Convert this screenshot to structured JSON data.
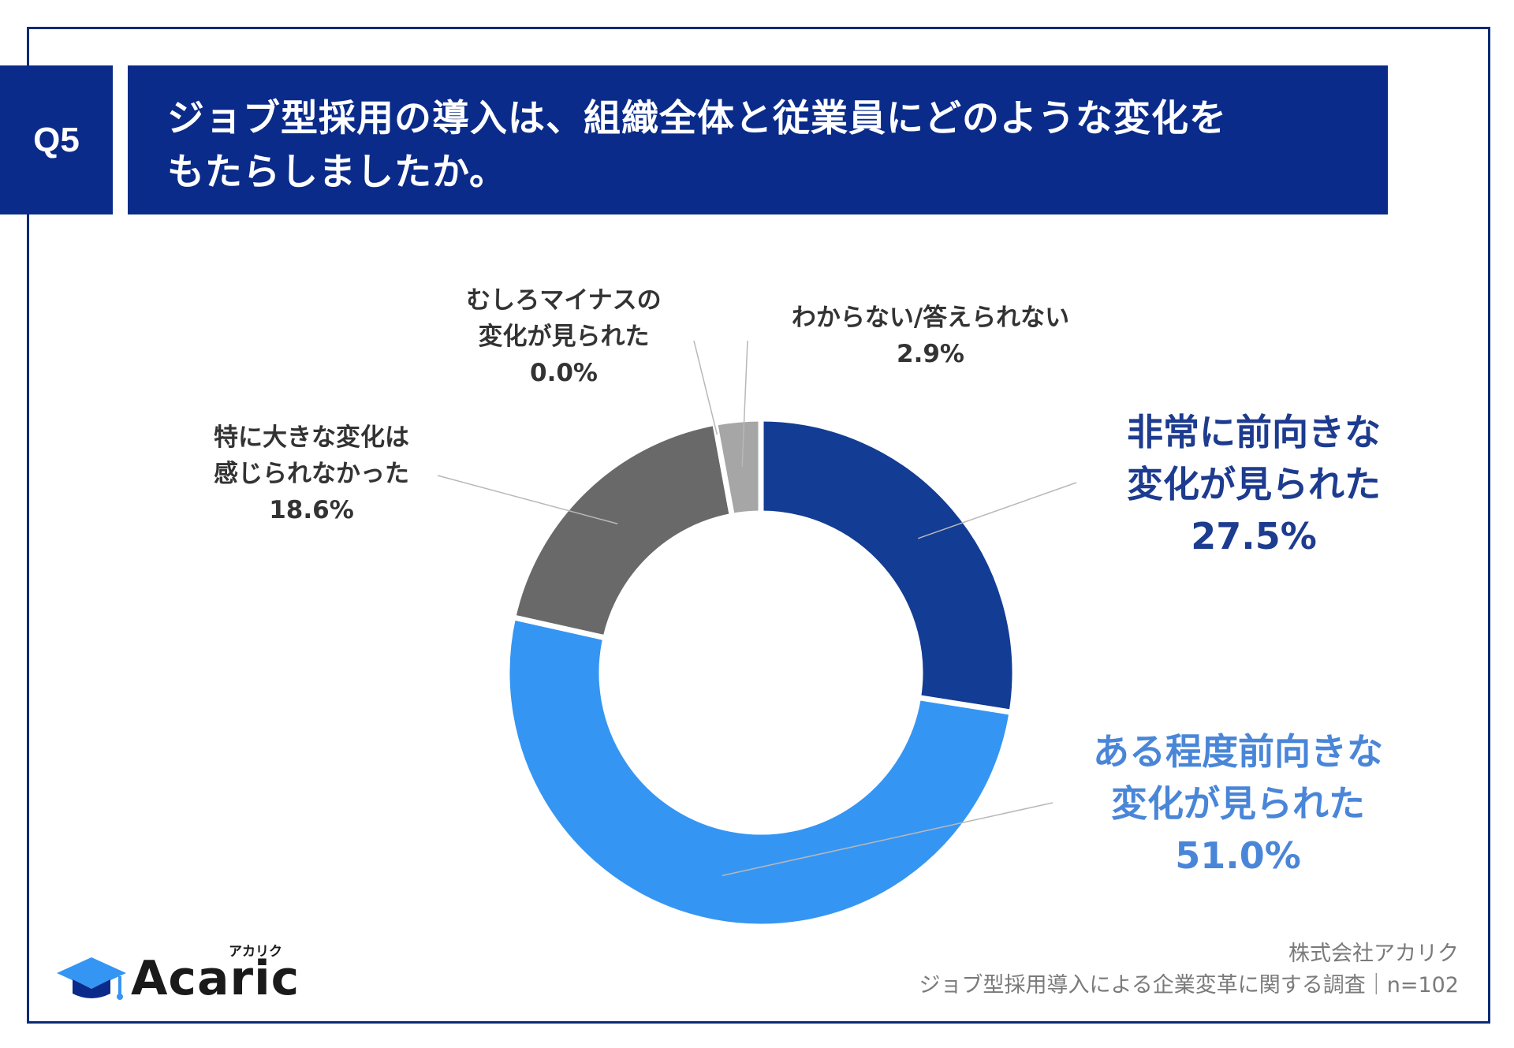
{
  "header": {
    "badge": "Q5",
    "title": "ジョブ型採用の導入は、組織全体と従業員にどのような変化を\nもたらしましたか。"
  },
  "chart_data": {
    "type": "pie",
    "donut": true,
    "start": "12 o'clock, clockwise",
    "slices": [
      {
        "label": "非常に前向きな\n変化が見られた",
        "value": 27.5,
        "pct": "27.5%",
        "color": "#133c94"
      },
      {
        "label": "ある程度前向きな\n変化が見られた",
        "value": 51.0,
        "pct": "51.0%",
        "color": "#3595f3"
      },
      {
        "label": "特に大きな変化は\n感じられなかった",
        "value": 18.6,
        "pct": "18.6%",
        "color": "#696969"
      },
      {
        "label": "むしろマイナスの\n変化が見られた",
        "value": 0.0,
        "pct": "0.0%",
        "color": "#bfbfbf"
      },
      {
        "label": "わからない/答えられない",
        "value": 2.9,
        "pct": "2.9%",
        "color": "#a6a6a6"
      }
    ]
  },
  "logo": {
    "text": "Acaric",
    "kana": "アカリク"
  },
  "footer": {
    "line1": "株式会社アカリク",
    "line2": "ジョブ型採用導入による企業変革に関する調査｜n=102"
  }
}
